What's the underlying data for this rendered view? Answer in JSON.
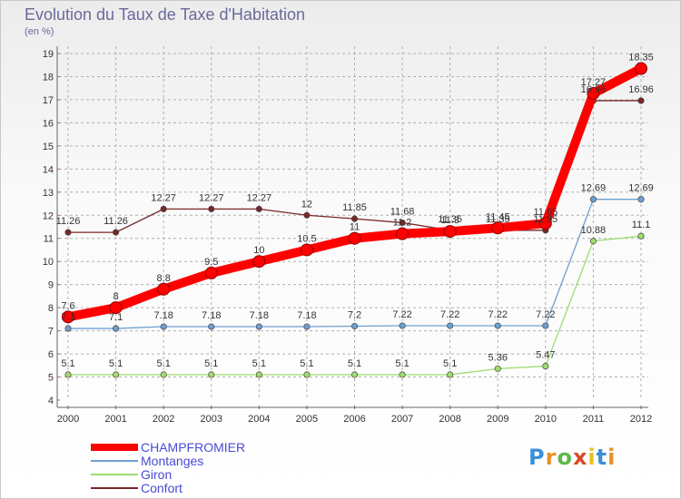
{
  "title": "Evolution du Taux de Taxe d'Habitation",
  "subtitle": "(en %)",
  "logo": "Proxiti",
  "colors": {
    "grid": "#b0b0b0",
    "axis": "#666666",
    "CHAMPFROMIER": "#ff0000",
    "Montanges": "#6e9fd0",
    "Giron": "#9edc70",
    "Confort": "#7a2626"
  },
  "chart_data": {
    "type": "line",
    "categories": [
      "2000",
      "2001",
      "2002",
      "2003",
      "2004",
      "2005",
      "2006",
      "2007",
      "2008",
      "2009",
      "2010",
      "2011",
      "2012"
    ],
    "ylim": [
      4,
      19
    ],
    "yticks": [
      "4",
      "5",
      "6",
      "7",
      "8",
      "9",
      "10",
      "11",
      "12",
      "13",
      "14",
      "15",
      "16",
      "17",
      "18",
      "19"
    ],
    "grid": "horizontal dashed",
    "legend": "bottom-left",
    "series": [
      {
        "name": "CHAMPFROMIER",
        "values": [
          7.6,
          8,
          8.8,
          9.5,
          10,
          10.5,
          11,
          11.2,
          11.3,
          11.45,
          11.65,
          17.27,
          18.35
        ],
        "labels": [
          "7.6",
          "8",
          "8.8",
          "9.5",
          "10",
          "10.5",
          "11",
          "11.2",
          "11.3",
          "11.45",
          "11.65",
          "17.27",
          "18.35"
        ]
      },
      {
        "name": "Montanges",
        "values": [
          7.1,
          7.1,
          7.18,
          7.18,
          7.18,
          7.18,
          7.2,
          7.22,
          7.22,
          7.22,
          7.22,
          12.69,
          12.69
        ],
        "labels": [
          "7.1",
          "7.1",
          "7.18",
          "7.18",
          "7.18",
          "7.18",
          "7.2",
          "7.22",
          "7.22",
          "7.22",
          "7.22",
          "12.69",
          "12.69"
        ]
      },
      {
        "name": "Giron",
        "values": [
          5.1,
          5.1,
          5.1,
          5.1,
          5.1,
          5.1,
          5.1,
          5.1,
          5.1,
          5.36,
          5.47,
          10.88,
          11.1
        ],
        "labels": [
          "5.1",
          "5.1",
          "5.1",
          "5.1",
          "5.1",
          "5.1",
          "5.1",
          "5.1",
          "5.1",
          "5.36",
          "5.47",
          "10.88",
          "11.1"
        ]
      },
      {
        "name": "Confort",
        "values": [
          11.26,
          11.26,
          12.27,
          12.27,
          12.27,
          12,
          11.85,
          11.68,
          11.35,
          11.35,
          11.35,
          16.96,
          16.96
        ],
        "labels": [
          "11.26",
          "11.26",
          "12.27",
          "12.27",
          "12.27",
          "12",
          "11.85",
          "11.68",
          "11.35",
          "11.35",
          "11.35",
          "16.96",
          "16.96"
        ]
      }
    ]
  }
}
